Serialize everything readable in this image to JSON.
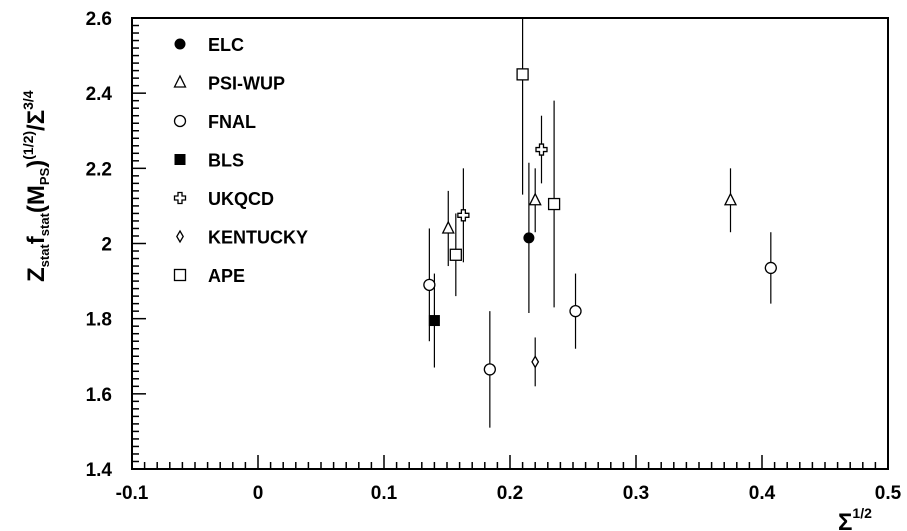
{
  "chart_data": {
    "type": "scatter",
    "title": "",
    "xlim": [
      -0.1,
      0.5
    ],
    "ylim": [
      1.4,
      2.6
    ],
    "grid": false,
    "legend_position": "top-left",
    "xlabel": {
      "base": "Σ",
      "sup": "1/2"
    },
    "ylabel": {
      "parts": [
        {
          "t": "Z",
          "style": "normal"
        },
        {
          "t": "stat",
          "style": "sub"
        },
        {
          "t": "f",
          "style": "normal"
        },
        {
          "t": "stat",
          "style": "sub"
        },
        {
          "t": "(M",
          "style": "normal"
        },
        {
          "t": "PS",
          "style": "sub"
        },
        {
          "t": ")",
          "style": "normal"
        },
        {
          "t": "(1/2)",
          "style": "sup"
        },
        {
          "t": "/Σ",
          "style": "normal"
        },
        {
          "t": "3/4",
          "style": "sup"
        }
      ]
    },
    "xticks": [
      -0.1,
      0,
      0.1,
      0.2,
      0.3,
      0.4,
      0.5
    ],
    "xtick_labels": [
      "-0.1",
      "0",
      "0.1",
      "0.2",
      "0.3",
      "0.4",
      "0.5"
    ],
    "yticks": [
      1.4,
      1.6,
      1.8,
      2.0,
      2.2,
      2.4,
      2.6
    ],
    "ytick_labels": [
      "1.4",
      "1.6",
      "1.8",
      "2",
      "2.2",
      "2.4",
      "2.6"
    ],
    "series": [
      {
        "name": "ELC",
        "marker": "filled-circle",
        "points": [
          {
            "x": 0.215,
            "y": 2.015,
            "ylo": 1.815,
            "yhi": 2.215
          }
        ]
      },
      {
        "name": "PSI-WUP",
        "marker": "open-triangle",
        "points": [
          {
            "x": 0.151,
            "y": 2.04,
            "ylo": 1.94,
            "yhi": 2.14
          },
          {
            "x": 0.22,
            "y": 2.115,
            "ylo": 2.03,
            "yhi": 2.2
          },
          {
            "x": 0.375,
            "y": 2.115,
            "ylo": 2.03,
            "yhi": 2.2
          }
        ]
      },
      {
        "name": "FNAL",
        "marker": "open-circle",
        "points": [
          {
            "x": 0.136,
            "y": 1.89,
            "ylo": 1.74,
            "yhi": 2.04
          },
          {
            "x": 0.184,
            "y": 1.665,
            "ylo": 1.51,
            "yhi": 1.82
          },
          {
            "x": 0.252,
            "y": 1.82,
            "ylo": 1.72,
            "yhi": 1.92
          },
          {
            "x": 0.407,
            "y": 1.935,
            "ylo": 1.84,
            "yhi": 2.03
          }
        ]
      },
      {
        "name": "BLS",
        "marker": "filled-square",
        "points": [
          {
            "x": 0.14,
            "y": 1.795,
            "ylo": 1.67,
            "yhi": 1.92
          }
        ]
      },
      {
        "name": "UKQCD",
        "marker": "open-cross",
        "points": [
          {
            "x": 0.163,
            "y": 2.075,
            "ylo": 1.95,
            "yhi": 2.2
          },
          {
            "x": 0.225,
            "y": 2.25,
            "ylo": 2.16,
            "yhi": 2.34
          }
        ]
      },
      {
        "name": "KENTUCKY",
        "marker": "open-diamond",
        "points": [
          {
            "x": 0.22,
            "y": 1.685,
            "ylo": 1.62,
            "yhi": 1.75
          }
        ]
      },
      {
        "name": "APE",
        "marker": "open-square",
        "points": [
          {
            "x": 0.157,
            "y": 1.97,
            "ylo": 1.86,
            "yhi": 2.08
          },
          {
            "x": 0.21,
            "y": 2.45,
            "ylo": 2.13,
            "yhi": 2.6
          },
          {
            "x": 0.235,
            "y": 2.105,
            "ylo": 1.83,
            "yhi": 2.38
          }
        ]
      }
    ]
  }
}
